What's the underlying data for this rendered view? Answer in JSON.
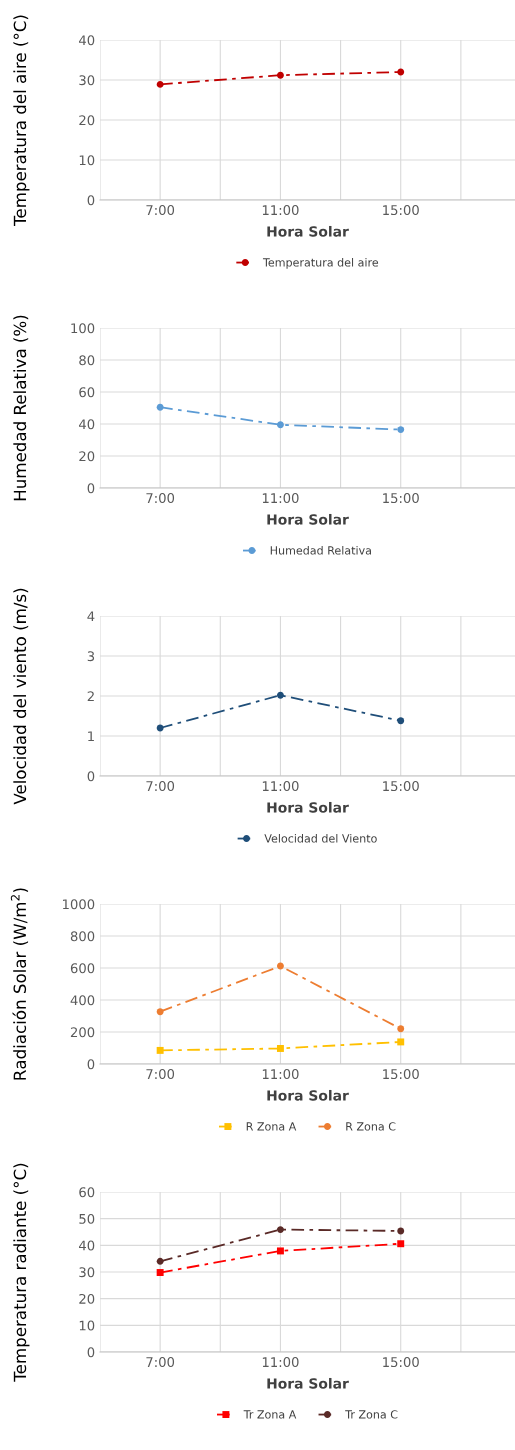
{
  "chart_data": [
    {
      "type": "line",
      "categories": [
        "7:00",
        "11:00",
        "15:00"
      ],
      "xlabel": "Hora Solar",
      "ylabel": "Temperatura del aire (°C)",
      "ylim": [
        0,
        40
      ],
      "yticks": [
        0,
        10,
        20,
        30,
        40
      ],
      "grid": true,
      "legend": "bottom",
      "marker": "circle",
      "line_style": "dashed",
      "series": [
        {
          "name": "Temperatura del aire",
          "color": "#c00000",
          "values": [
            28.9,
            31.2,
            32
          ]
        }
      ]
    },
    {
      "type": "line",
      "categories": [
        "7:00",
        "11:00",
        "15:00"
      ],
      "xlabel": "Hora Solar",
      "ylabel": "Humedad Relativa (%)",
      "ylim": [
        0,
        100
      ],
      "yticks": [
        0,
        20,
        40,
        60,
        80,
        100
      ],
      "grid": true,
      "legend": "bottom",
      "marker": "circle",
      "line_style": "dashed",
      "series": [
        {
          "name": "Humedad Relativa",
          "color": "#5b9bd5",
          "values": [
            50.5,
            39.5,
            36.5
          ]
        }
      ]
    },
    {
      "type": "line",
      "categories": [
        "7:00",
        "11:00",
        "15:00"
      ],
      "xlabel": "Hora Solar",
      "ylabel": "Velocidad del viento (m/s)",
      "ylim": [
        0,
        4
      ],
      "yticks": [
        0,
        1,
        2,
        3,
        4
      ],
      "grid": true,
      "legend": "bottom",
      "marker": "circle",
      "line_style": "dashed",
      "series": [
        {
          "name": "Velocidad del Viento",
          "color": "#1f4e79",
          "values": [
            1.2,
            2.02,
            1.38
          ]
        }
      ]
    },
    {
      "type": "line",
      "categories": [
        "7:00",
        "11:00",
        "15:00"
      ],
      "xlabel": "Hora Solar",
      "ylabel": "Radiación Solar (W/m$^{2}$)",
      "ylim": [
        0,
        1000
      ],
      "yticks": [
        0,
        200,
        400,
        600,
        800,
        1000
      ],
      "grid": true,
      "legend": "bottom",
      "line_style": "dashed",
      "series": [
        {
          "name": "R Zona A",
          "color": "#ffc000",
          "marker": "square",
          "values": [
            85,
            97,
            138
          ]
        },
        {
          "name": "R Zona C",
          "color": "#ed7d31",
          "marker": "circle",
          "values": [
            327,
            612,
            220
          ]
        }
      ]
    },
    {
      "type": "line",
      "categories": [
        "7:00",
        "11:00",
        "15:00"
      ],
      "xlabel": "Hora Solar",
      "ylabel": "Temperatura radiante (°C)",
      "ylim": [
        0,
        60
      ],
      "yticks": [
        0,
        10,
        20,
        30,
        40,
        50,
        60
      ],
      "grid": true,
      "legend": "bottom",
      "line_style": "dashed",
      "series": [
        {
          "name": "Tr Zona A",
          "color": "#ff0000",
          "marker": "square",
          "values": [
            29.8,
            37.9,
            40.6
          ]
        },
        {
          "name": "Tr Zona C",
          "color": "#5a2a27",
          "marker": "circle",
          "values": [
            34,
            45.9,
            45.4
          ]
        }
      ]
    }
  ]
}
